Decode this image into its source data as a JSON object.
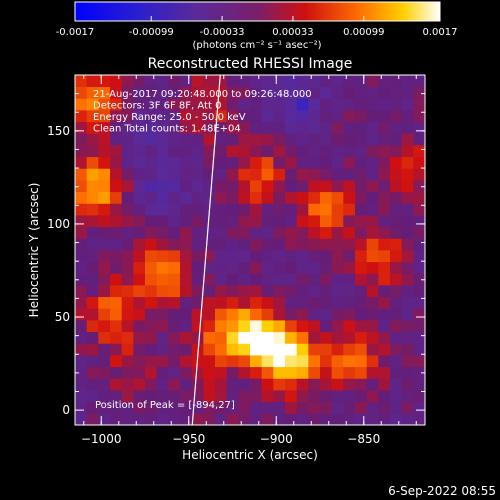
{
  "colorbar": {
    "tick_labels": [
      "-0.0017",
      "-0.00099",
      "-0.00033",
      "0.00033",
      "0.00099",
      "0.0017"
    ],
    "unit_label": "(photons cm⁻² s⁻¹ asec⁻²)",
    "range": [
      -0.0017,
      0.0017
    ]
  },
  "chart_data": {
    "type": "heatmap",
    "title": "Reconstructed RHESSI Image",
    "xlabel": "Heliocentric X (arcsec)",
    "ylabel": "Heliocentric Y (arcsec)",
    "xlim": [
      -1015,
      -815
    ],
    "ylim": [
      -8,
      180
    ],
    "x_ticks": [
      -1000,
      -950,
      -900,
      -850
    ],
    "x_tick_labels": [
      "−1000",
      "−950",
      "−900",
      "−850"
    ],
    "y_ticks": [
      0,
      50,
      100,
      150
    ],
    "y_tick_labels": [
      "0",
      "50",
      "100",
      "150"
    ],
    "grid": false,
    "colormap": "blue-purple-red-yellow-white",
    "info_lines": [
      "21-Aug-2017 09:20:48.000 to 09:26:48.000",
      "Detectors: 3F 6F 8F, Att 0",
      "Energy Range: 25.0 - 50.0 keV",
      "Clean    Total counts: 1.48E+04"
    ],
    "peak_label": "Position of Peak = [-894,27]",
    "limb_line": {
      "x": [
        -948,
        -932
      ],
      "y": [
        -8,
        180
      ]
    },
    "grid_size": 30,
    "blobs": [
      {
        "x": -1003,
        "y": 120,
        "v": 0.8
      },
      {
        "x": -1004,
        "y": 165,
        "v": 0.65
      },
      {
        "x": -993,
        "y": 52,
        "v": 0.55
      },
      {
        "x": -965,
        "y": 75,
        "v": 0.75
      },
      {
        "x": -932,
        "y": 42,
        "v": 0.5
      },
      {
        "x": -912,
        "y": 40,
        "v": 0.95
      },
      {
        "x": -893,
        "y": 27,
        "v": 1.0
      },
      {
        "x": -857,
        "y": 28,
        "v": 0.6
      },
      {
        "x": -910,
        "y": 126,
        "v": 0.5
      },
      {
        "x": -940,
        "y": 162,
        "v": 0.35
      },
      {
        "x": -872,
        "y": 108,
        "v": 0.55
      },
      {
        "x": -842,
        "y": 82,
        "v": 0.5
      },
      {
        "x": -822,
        "y": 130,
        "v": 0.35
      },
      {
        "x": -985,
        "y": 25,
        "v": 0.25
      },
      {
        "x": -890,
        "y": 165,
        "v": -0.4
      },
      {
        "x": -965,
        "y": 120,
        "v": -0.3
      },
      {
        "x": -940,
        "y": 15,
        "v": 0.2
      },
      {
        "x": -975,
        "y": 150,
        "v": -0.2
      }
    ]
  },
  "footer": {
    "date": "6-Sep-2022 08:55"
  }
}
